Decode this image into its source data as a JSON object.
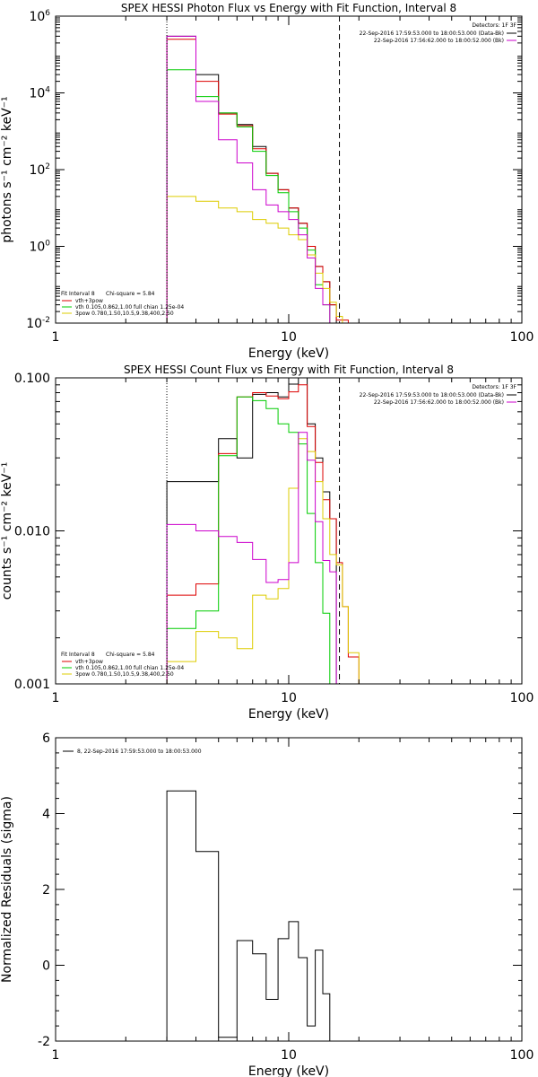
{
  "chart_data": [
    {
      "type": "line",
      "title": "SPEX HESSI Photon Flux vs Energy with Fit Function, Interval 8",
      "xlabel": "Energy (keV)",
      "ylabel": "photons s⁻¹ cm⁻² keV⁻¹",
      "xscale": "log",
      "yscale": "log",
      "xlim": [
        1,
        100
      ],
      "ylim": [
        0.01,
        1000000
      ],
      "x_ticks": [
        {
          "v": 1,
          "label": "1"
        },
        {
          "v": 10,
          "label": "10"
        },
        {
          "v": 100,
          "label": "100"
        }
      ],
      "y_ticks": [
        {
          "v": 0.01,
          "label": "10",
          "sup": "-2"
        },
        {
          "v": 1,
          "label": "10",
          "sup": "0"
        },
        {
          "v": 100,
          "label": "10",
          "sup": "2"
        },
        {
          "v": 10000,
          "label": "10",
          "sup": "4"
        },
        {
          "v": 1000000,
          "label": "10",
          "sup": "6"
        }
      ],
      "vlines": [
        {
          "x": 3,
          "style": "dotted"
        },
        {
          "x": 16.5,
          "style": "dashed"
        }
      ],
      "edges": [
        3,
        4,
        5,
        6,
        7,
        8,
        9,
        10,
        11,
        12,
        13,
        14,
        15,
        16,
        17,
        18,
        20
      ],
      "series": [
        {
          "name": "",
          "color": "#000000",
          "values": [
            300000,
            30000,
            3000,
            1500,
            400,
            80,
            30,
            10,
            4,
            1,
            0.3,
            0.12,
            0.03,
            null,
            null,
            null
          ]
        },
        {
          "name": "vth+3pow",
          "color": "#dd0000",
          "values": [
            250000,
            20000,
            2800,
            1400,
            350,
            80,
            30,
            10,
            4,
            1,
            0.3,
            0.12,
            0.03,
            0.012,
            0.012,
            null
          ]
        },
        {
          "name": "vth 0.105,0.862,1.00 full chian 1.25e-04",
          "color": "#00cc00",
          "values": [
            40000,
            8000,
            3000,
            1300,
            300,
            70,
            25,
            8,
            3,
            0.8,
            0.1,
            0.03,
            null,
            null,
            null,
            null
          ]
        },
        {
          "name": "3pow 0.780,1.50,10.5,9.38,400,2.50",
          "color": "#ddcc00",
          "values": [
            20,
            15,
            10,
            8,
            5,
            4,
            3,
            2,
            1.5,
            0.6,
            0.2,
            0.08,
            0.035,
            0.015,
            0.01,
            null
          ]
        },
        {
          "name": "",
          "color": "#cc00cc",
          "values": [
            300000,
            6000,
            600,
            150,
            30,
            12,
            8,
            5,
            2,
            0.5,
            0.08,
            0.03,
            null,
            null,
            null,
            null
          ]
        }
      ],
      "legend_header": {
        "fit": "Fit Interval 8",
        "chi": "Chi-square = 5.84"
      },
      "legend_entries": [
        {
          "label": "vth+3pow",
          "color": "#dd0000"
        },
        {
          "label": "vth 0.105,0.862,1.00 full chian 1.25e-04",
          "color": "#00cc00"
        },
        {
          "label": "3pow 0.780,1.50,10.5,9.38,400,2.50",
          "color": "#ddcc00"
        }
      ],
      "detector_legend": {
        "title": "Detectors: 1F 3F",
        "entries": [
          {
            "label": "22-Sep-2016 17:59:53.000 to 18:00:53.000 (Data-Bk)",
            "color": "#000000"
          },
          {
            "label": "22-Sep-2016 17:56:62.000 to 18:00:52.000 (Bk)",
            "color": "#cc00cc"
          }
        ]
      }
    },
    {
      "type": "line",
      "title": "SPEX HESSI Count Flux vs Energy with Fit Function, Interval 8",
      "xlabel": "Energy (keV)",
      "ylabel": "counts s⁻¹ cm⁻² keV⁻¹",
      "xscale": "log",
      "yscale": "log",
      "xlim": [
        1,
        100
      ],
      "ylim": [
        0.001,
        0.1
      ],
      "x_ticks": [
        {
          "v": 1,
          "label": "1"
        },
        {
          "v": 10,
          "label": "10"
        },
        {
          "v": 100,
          "label": "100"
        }
      ],
      "y_ticks": [
        {
          "v": 0.001,
          "label": "0.001"
        },
        {
          "v": 0.01,
          "label": "0.010"
        },
        {
          "v": 0.1,
          "label": "0.100"
        }
      ],
      "vlines": [
        {
          "x": 3,
          "style": "dotted"
        },
        {
          "x": 16.5,
          "style": "dashed"
        }
      ],
      "edges": [
        3,
        4,
        5,
        6,
        7,
        8,
        9,
        10,
        11,
        12,
        13,
        14,
        15,
        16,
        17,
        18,
        20
      ],
      "series": [
        {
          "name": "",
          "color": "#000000",
          "values": [
            0.021,
            0.021,
            0.04,
            0.03,
            0.078,
            0.08,
            0.075,
            0.091,
            0.102,
            0.05,
            0.03,
            0.018,
            0.012,
            null,
            null,
            null
          ]
        },
        {
          "name": "vth+3pow",
          "color": "#dd0000",
          "values": [
            0.0038,
            0.0045,
            0.032,
            0.075,
            0.08,
            0.076,
            0.073,
            0.081,
            0.09,
            0.048,
            0.028,
            0.016,
            0.012,
            0.0062,
            0.0032,
            0.0015
          ]
        },
        {
          "name": "vth 0.105,0.862,1.00 full chian 1.25e-04",
          "color": "#00cc00",
          "values": [
            0.0023,
            0.003,
            0.031,
            0.075,
            0.071,
            0.063,
            0.05,
            0.044,
            0.037,
            0.013,
            0.0062,
            0.0029,
            null,
            null,
            null,
            null
          ]
        },
        {
          "name": "3pow 0.780,1.50,10.5,9.38,400,2.50",
          "color": "#ddcc00",
          "values": [
            0.0014,
            0.0022,
            0.002,
            0.0017,
            0.0038,
            0.0036,
            0.0042,
            0.019,
            0.04,
            0.033,
            0.021,
            0.012,
            0.007,
            0.006,
            0.0032,
            0.0016
          ]
        },
        {
          "name": "",
          "color": "#cc00cc",
          "values": [
            0.011,
            0.01,
            0.0092,
            0.0084,
            0.0065,
            0.0046,
            0.0048,
            0.0062,
            0.044,
            0.029,
            0.0115,
            0.0064,
            0.0054,
            null,
            null,
            null
          ]
        }
      ],
      "legend_header": {
        "fit": "Fit Interval 8",
        "chi": "Chi-square = 5.84"
      },
      "legend_entries": [
        {
          "label": "vth+3pow",
          "color": "#dd0000"
        },
        {
          "label": "vth 0.105,0.862,1.00 full chian 1.25e-04",
          "color": "#00cc00"
        },
        {
          "label": "3pow 0.780,1.50,10.5,9.38,400,2.50",
          "color": "#ddcc00"
        }
      ],
      "detector_legend": {
        "title": "Detectors: 1F 3F",
        "entries": [
          {
            "label": "22-Sep-2016 17:59:53.000 to 18:00:53.000 (Data-Bk)",
            "color": "#000000"
          },
          {
            "label": "22-Sep-2016 17:56:62.000 to 18:00:52.000 (Bk)",
            "color": "#cc00cc"
          }
        ]
      }
    },
    {
      "type": "line",
      "title": "",
      "xlabel": "Energy (keV)",
      "ylabel": "Normalized Residuals (sigma)",
      "xscale": "log",
      "yscale": "linear",
      "xlim": [
        1,
        100
      ],
      "ylim": [
        -2,
        6
      ],
      "x_ticks": [
        {
          "v": 1,
          "label": "1"
        },
        {
          "v": 10,
          "label": "10"
        },
        {
          "v": 100,
          "label": "100"
        }
      ],
      "y_ticks": [
        {
          "v": -2,
          "label": "-2"
        },
        {
          "v": 0,
          "label": "0"
        },
        {
          "v": 2,
          "label": "2"
        },
        {
          "v": 4,
          "label": "4"
        },
        {
          "v": 6,
          "label": "6"
        }
      ],
      "edges": [
        3,
        4,
        5,
        6,
        7,
        8,
        9,
        10,
        11,
        12,
        13,
        14,
        15,
        16.5
      ],
      "series": [
        {
          "name": "8, 22-Sep-2016 17:59:53.000 to 18:00:53.000",
          "color": "#000000",
          "values": [
            4.6,
            3.0,
            -1.9,
            0.65,
            0.3,
            -0.9,
            0.7,
            1.15,
            0.2,
            -1.6,
            0.4,
            -0.75,
            null
          ]
        }
      ],
      "legend_entries": [
        {
          "label": "8, 22-Sep-2016 17:59:53.000 to 18:00:53.000",
          "color": "#000000"
        }
      ]
    }
  ]
}
